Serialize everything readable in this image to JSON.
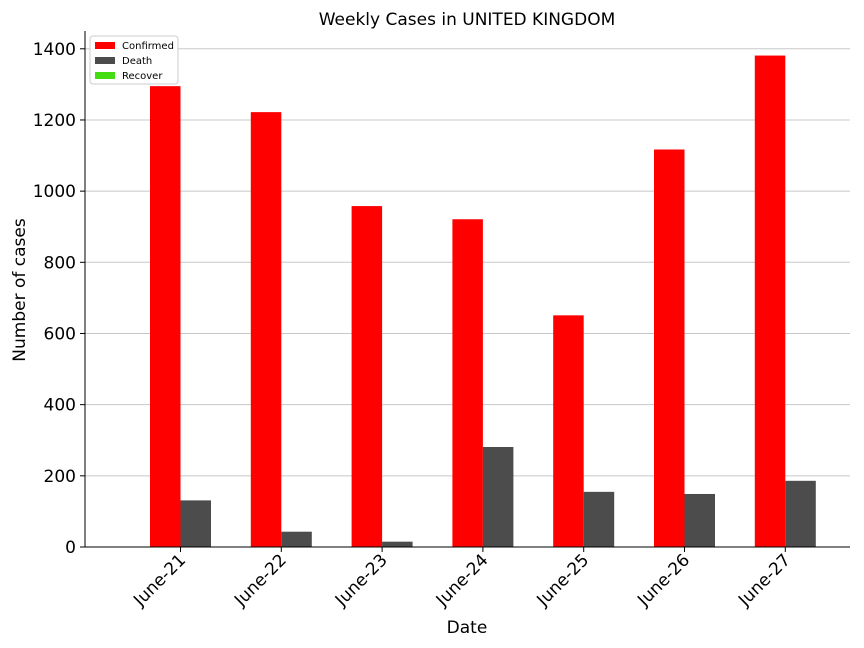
{
  "chart_data": {
    "type": "bar",
    "title": "Weekly Cases in UNITED KINGDOM",
    "xlabel": "Date",
    "ylabel": "Number of cases",
    "ylim": [
      0,
      1450
    ],
    "yticks": [
      0,
      200,
      400,
      600,
      800,
      1000,
      1200,
      1400
    ],
    "grid": "horizontal",
    "legend_position": "top-left",
    "categories": [
      "June-21",
      "June-22",
      "June-23",
      "June-24",
      "June-25",
      "June-26",
      "June-27"
    ],
    "series": [
      {
        "name": "Confirmed",
        "color": "#ff0000",
        "values": [
          1295,
          1222,
          958,
          921,
          651,
          1117,
          1381
        ]
      },
      {
        "name": "Death",
        "color": "#4c4c4c",
        "values": [
          131,
          43,
          15,
          281,
          155,
          149,
          186
        ]
      },
      {
        "name": "Recover",
        "color": "#44dd11",
        "values": [
          0,
          0,
          0,
          0,
          0,
          0,
          0
        ]
      }
    ]
  }
}
